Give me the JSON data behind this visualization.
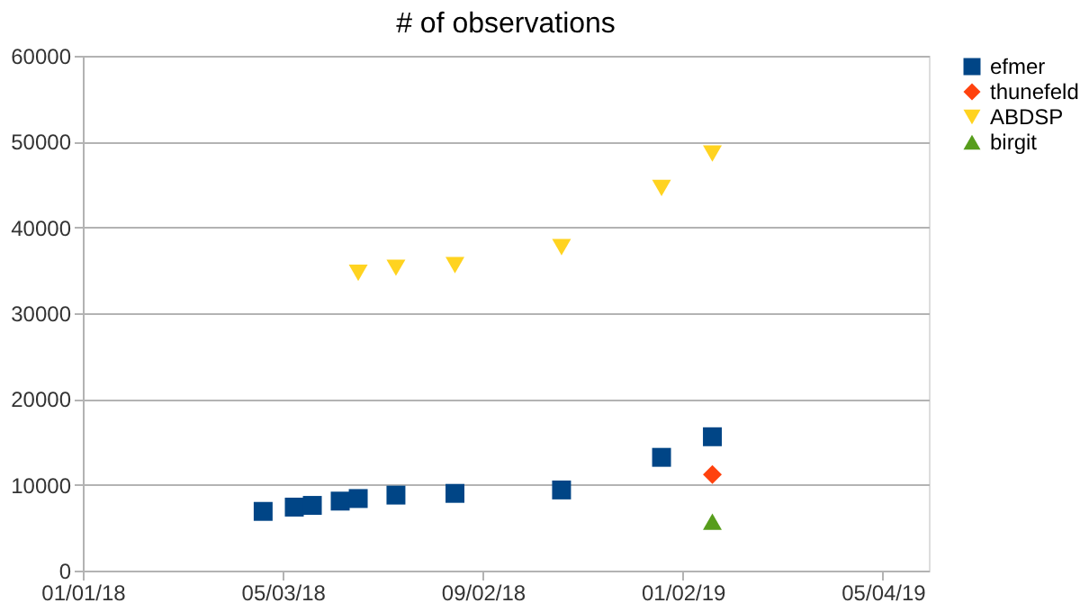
{
  "chart_data": {
    "type": "scatter",
    "title": "# of observations",
    "series": [
      {
        "name": "efmer",
        "color": "#004586",
        "marker": "square",
        "x": [
          "2018-04-21",
          "2018-05-10",
          "2018-05-21",
          "2018-06-07",
          "2018-06-18",
          "2018-07-11",
          "2018-08-16",
          "2018-10-20",
          "2018-12-20",
          "2019-01-20"
        ],
        "values": [
          6900,
          7400,
          7600,
          8100,
          8400,
          8800,
          9000,
          9400,
          13200,
          15600
        ]
      },
      {
        "name": "thunefeld",
        "color": "#ff420e",
        "marker": "diamond",
        "x": [
          "2019-01-20"
        ],
        "values": [
          11200
        ]
      },
      {
        "name": "ABDSP",
        "color": "#ffd320",
        "marker": "triangle-down",
        "x": [
          "2018-06-18",
          "2018-07-11",
          "2018-08-16",
          "2018-10-20",
          "2018-12-20",
          "2019-01-20"
        ],
        "values": [
          34700,
          35300,
          35600,
          37700,
          44600,
          48600
        ]
      },
      {
        "name": "birgit",
        "color": "#579d1c",
        "marker": "triangle",
        "x": [
          "2019-01-20"
        ],
        "values": [
          5700
        ]
      }
    ],
    "xlim": [
      "2018-01-01",
      "2019-06-01"
    ],
    "xticks": [
      {
        "value": "2018-01-01",
        "label": "01/01/18"
      },
      {
        "value": "2018-05-03",
        "label": "05/03/18"
      },
      {
        "value": "2018-09-02",
        "label": "09/02/18"
      },
      {
        "value": "2019-01-02",
        "label": "01/02/19"
      },
      {
        "value": "2019-05-04",
        "label": "05/04/19"
      }
    ],
    "ylim": [
      0,
      60000
    ],
    "yticks": [
      0,
      10000,
      20000,
      30000,
      40000,
      50000,
      60000
    ],
    "grid": "y",
    "legend": "right"
  }
}
